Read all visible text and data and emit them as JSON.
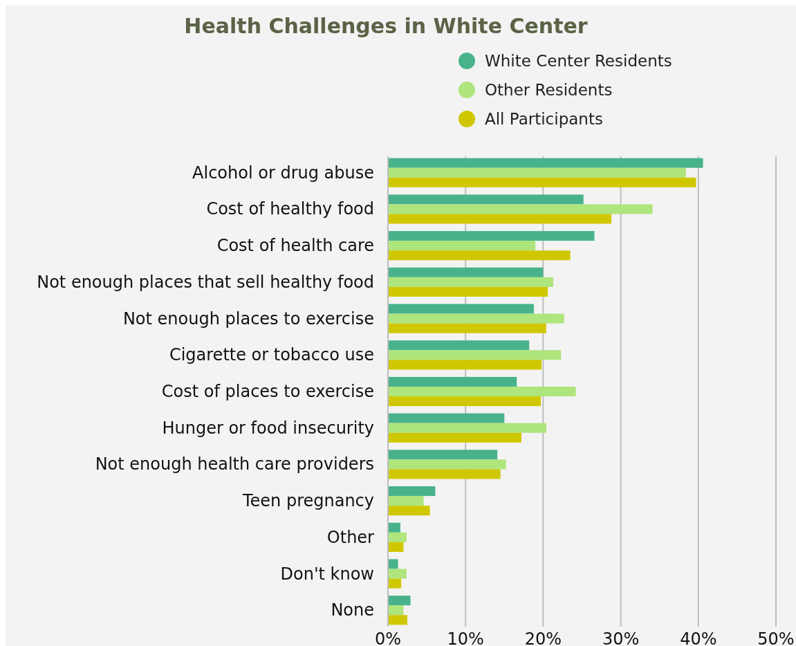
{
  "chart_data": {
    "type": "bar",
    "orientation": "horizontal",
    "title": "Health Challenges in White Center",
    "categories": [
      "Alcohol or drug abuse",
      "Cost of healthy food",
      "Cost of health care",
      "Not enough places that sell healthy food",
      "Not enough places to exercise",
      "Cigarette or tobacco use",
      "Cost of places to exercise",
      "Hunger or food insecurity",
      "Not enough health care providers",
      "Teen pregnancy",
      "Other",
      "Don't know",
      "None"
    ],
    "series": [
      {
        "name": "White Center Residents",
        "color": "#48b38a",
        "values": [
          40.6,
          25.2,
          26.6,
          20.0,
          18.8,
          18.2,
          16.6,
          15.0,
          14.1,
          6.1,
          1.6,
          1.3,
          2.9
        ]
      },
      {
        "name": "Other Residents",
        "color": "#aee57c",
        "values": [
          38.4,
          34.1,
          19.0,
          21.3,
          22.7,
          22.3,
          24.2,
          20.4,
          15.2,
          4.6,
          2.4,
          2.4,
          2.0
        ]
      },
      {
        "name": "All Participants",
        "color": "#cfc800",
        "values": [
          39.7,
          28.8,
          23.5,
          20.6,
          20.4,
          19.8,
          19.7,
          17.2,
          14.5,
          5.4,
          2.0,
          1.7,
          2.5
        ]
      }
    ],
    "xlim": [
      0,
      50
    ],
    "xticks": [
      {
        "value": 0,
        "label": "0%"
      },
      {
        "value": 10,
        "label": "10%"
      },
      {
        "value": 20,
        "label": "20%"
      },
      {
        "value": 30,
        "label": "30%"
      },
      {
        "value": 40,
        "label": "40%"
      },
      {
        "value": 50,
        "label": "50%"
      }
    ],
    "grid": "x",
    "legend": "top right"
  }
}
